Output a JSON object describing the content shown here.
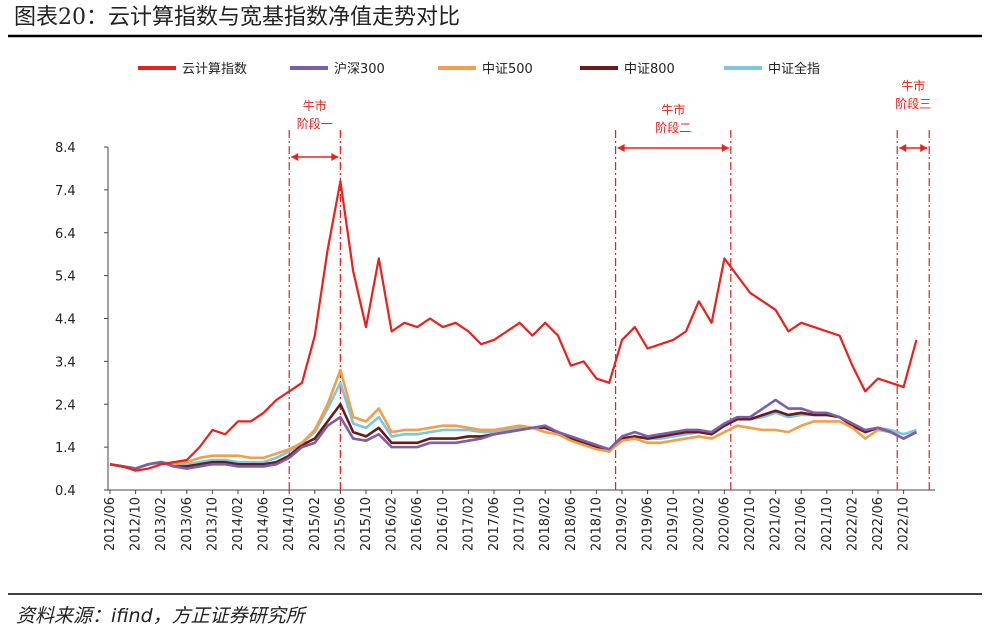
{
  "chart_data": {
    "type": "line",
    "title": "图表20：云计算指数与宽基指数净值走势对比",
    "source": "资料来源：ifind，方正证券研究所",
    "categories": [
      "2012/06",
      null,
      "2012/10",
      null,
      "2013/02",
      null,
      "2013/06",
      null,
      "2013/10",
      null,
      "2014/02",
      null,
      "2014/06",
      null,
      "2014/10",
      null,
      "2015/02",
      null,
      "2015/06",
      null,
      "2015/10",
      null,
      "2016/02",
      null,
      "2016/06",
      null,
      "2016/10",
      null,
      "2017/02",
      null,
      "2017/06",
      null,
      "2017/10",
      null,
      "2018/02",
      null,
      "2018/06",
      null,
      "2018/10",
      null,
      "2019/02",
      null,
      "2019/06",
      null,
      "2019/10",
      null,
      "2020/02",
      null,
      "2020/06",
      null,
      "2020/10",
      null,
      "2021/02",
      null,
      "2021/06",
      null,
      "2021/10",
      null,
      "2022/02",
      null,
      "2022/06",
      null,
      "2022/10",
      null
    ],
    "series": [
      {
        "name": "云计算指数",
        "color": "#e8211e",
        "values": [
          1.0,
          0.95,
          0.85,
          0.9,
          1.0,
          1.05,
          1.1,
          1.4,
          1.8,
          1.7,
          2.0,
          2.0,
          2.2,
          2.5,
          2.7,
          2.9,
          4.0,
          6.0,
          7.6,
          5.5,
          4.2,
          5.8,
          4.1,
          4.3,
          4.2,
          4.4,
          4.2,
          4.3,
          4.1,
          3.8,
          3.9,
          4.1,
          4.3,
          4.0,
          4.3,
          4.0,
          3.3,
          3.4,
          3.0,
          2.9,
          3.9,
          4.2,
          3.7,
          3.8,
          3.9,
          4.1,
          4.8,
          4.3,
          5.8,
          5.4,
          5.0,
          4.8,
          4.6,
          4.1,
          4.3,
          4.2,
          4.1,
          4.0,
          3.3,
          2.7,
          3.0,
          2.9,
          2.8,
          3.9
        ]
      },
      {
        "name": "沪深300",
        "color": "#7b5ea8",
        "values": [
          1.0,
          0.95,
          0.9,
          1.0,
          1.05,
          0.95,
          0.9,
          0.95,
          1.0,
          1.0,
          0.95,
          0.95,
          0.95,
          1.0,
          1.15,
          1.4,
          1.5,
          1.9,
          2.1,
          1.6,
          1.55,
          1.7,
          1.4,
          1.4,
          1.4,
          1.5,
          1.5,
          1.5,
          1.55,
          1.6,
          1.7,
          1.75,
          1.8,
          1.85,
          1.9,
          1.75,
          1.65,
          1.55,
          1.45,
          1.35,
          1.65,
          1.75,
          1.65,
          1.7,
          1.75,
          1.8,
          1.8,
          1.75,
          1.95,
          2.1,
          2.1,
          2.3,
          2.5,
          2.3,
          2.3,
          2.2,
          2.2,
          2.1,
          1.95,
          1.8,
          1.85,
          1.75,
          1.6,
          1.75
        ]
      },
      {
        "name": "中证500",
        "color": "#f0a04b",
        "values": [
          1.0,
          0.95,
          0.9,
          1.0,
          1.05,
          1.0,
          1.05,
          1.15,
          1.2,
          1.2,
          1.2,
          1.15,
          1.15,
          1.25,
          1.35,
          1.5,
          1.8,
          2.4,
          3.2,
          2.1,
          2.0,
          2.3,
          1.75,
          1.8,
          1.8,
          1.85,
          1.9,
          1.9,
          1.85,
          1.8,
          1.8,
          1.85,
          1.9,
          1.85,
          1.75,
          1.7,
          1.55,
          1.45,
          1.35,
          1.3,
          1.55,
          1.6,
          1.5,
          1.5,
          1.55,
          1.6,
          1.65,
          1.6,
          1.75,
          1.9,
          1.85,
          1.8,
          1.8,
          1.75,
          1.9,
          2.0,
          2.0,
          2.0,
          1.85,
          1.6,
          1.8,
          1.75,
          1.6,
          1.75
        ]
      },
      {
        "name": "中证800",
        "color": "#6b1a1a",
        "values": [
          1.0,
          0.95,
          0.9,
          1.0,
          1.05,
          0.95,
          0.95,
          1.0,
          1.05,
          1.05,
          1.0,
          1.0,
          1.0,
          1.05,
          1.2,
          1.45,
          1.6,
          2.0,
          2.4,
          1.75,
          1.65,
          1.85,
          1.5,
          1.5,
          1.5,
          1.6,
          1.6,
          1.6,
          1.65,
          1.65,
          1.7,
          1.75,
          1.8,
          1.85,
          1.85,
          1.75,
          1.6,
          1.5,
          1.4,
          1.3,
          1.6,
          1.65,
          1.6,
          1.65,
          1.7,
          1.75,
          1.75,
          1.7,
          1.9,
          2.05,
          2.05,
          2.15,
          2.25,
          2.15,
          2.2,
          2.15,
          2.15,
          2.1,
          1.9,
          1.75,
          1.85,
          1.75,
          1.6,
          1.75
        ]
      },
      {
        "name": "中证全指",
        "color": "#7cc6e0",
        "values": [
          1.0,
          0.95,
          0.9,
          1.0,
          1.05,
          1.0,
          1.0,
          1.05,
          1.1,
          1.1,
          1.05,
          1.05,
          1.05,
          1.15,
          1.3,
          1.5,
          1.75,
          2.3,
          2.9,
          1.95,
          1.85,
          2.1,
          1.65,
          1.7,
          1.7,
          1.75,
          1.8,
          1.8,
          1.8,
          1.75,
          1.75,
          1.8,
          1.85,
          1.85,
          1.85,
          1.75,
          1.6,
          1.5,
          1.4,
          1.3,
          1.6,
          1.65,
          1.6,
          1.6,
          1.65,
          1.7,
          1.75,
          1.75,
          1.9,
          2.05,
          2.05,
          2.1,
          2.2,
          2.1,
          2.15,
          2.15,
          2.15,
          2.1,
          1.95,
          1.75,
          1.85,
          1.8,
          1.7,
          1.8
        ]
      }
    ],
    "ylim": [
      0.4,
      8.4
    ],
    "yticks": [
      0.4,
      1.4,
      2.4,
      3.4,
      4.4,
      5.4,
      6.4,
      7.4,
      8.4
    ],
    "annotations": [
      {
        "text": [
          "牛市",
          "阶段一"
        ]
      },
      {
        "text": [
          "牛市",
          "阶段二"
        ]
      },
      {
        "text": [
          "牛市",
          "阶段三"
        ]
      }
    ]
  }
}
